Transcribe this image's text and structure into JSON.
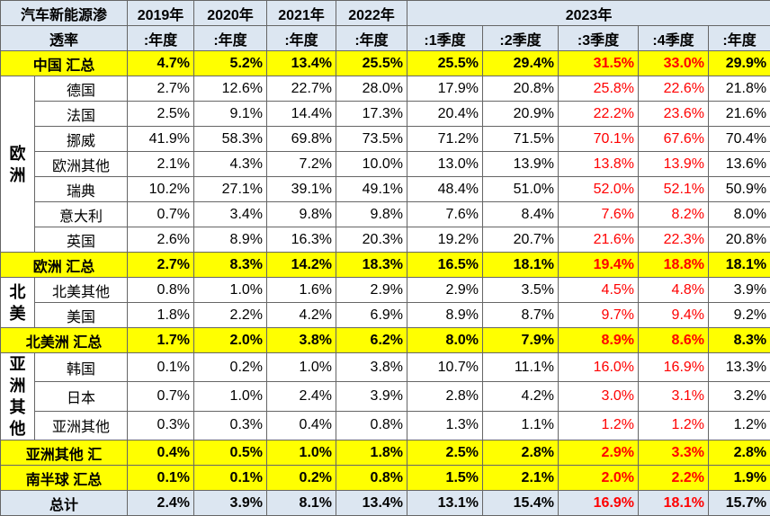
{
  "table": {
    "header": {
      "row1": [
        "汽车新能源渗",
        "2019年",
        "2020年",
        "2021年",
        "2022年",
        "2023年"
      ],
      "row2": [
        "透率",
        ":年度",
        ":年度",
        ":年度",
        ":年度",
        ":1季度",
        ":2季度",
        ":3季度",
        ":4季度",
        ":年度"
      ]
    },
    "highlight_columns": [
      6,
      7
    ],
    "highlight_color": "#ff0000",
    "sections": [
      {
        "summary": "中国 汇总",
        "values": [
          "4.7%",
          "5.2%",
          "13.4%",
          "25.5%",
          "25.5%",
          "29.4%",
          "31.5%",
          "33.0%",
          "29.9%"
        ]
      },
      {
        "group": "欧洲",
        "rows": [
          {
            "label": "德国",
            "values": [
              "2.7%",
              "12.6%",
              "22.7%",
              "28.0%",
              "17.9%",
              "20.8%",
              "25.8%",
              "22.6%",
              "21.8%"
            ]
          },
          {
            "label": "法国",
            "values": [
              "2.5%",
              "9.1%",
              "14.4%",
              "17.3%",
              "20.4%",
              "20.9%",
              "22.2%",
              "23.6%",
              "21.6%"
            ]
          },
          {
            "label": "挪威",
            "values": [
              "41.9%",
              "58.3%",
              "69.8%",
              "73.5%",
              "71.2%",
              "71.5%",
              "70.1%",
              "67.6%",
              "70.4%"
            ]
          },
          {
            "label": "欧洲其他",
            "values": [
              "2.1%",
              "4.3%",
              "7.2%",
              "10.0%",
              "13.0%",
              "13.9%",
              "13.8%",
              "13.9%",
              "13.6%"
            ]
          },
          {
            "label": "瑞典",
            "values": [
              "10.2%",
              "27.1%",
              "39.1%",
              "49.1%",
              "48.4%",
              "51.0%",
              "52.0%",
              "52.1%",
              "50.9%"
            ]
          },
          {
            "label": "意大利",
            "values": [
              "0.7%",
              "3.4%",
              "9.8%",
              "9.8%",
              "7.6%",
              "8.4%",
              "7.6%",
              "8.2%",
              "8.0%"
            ]
          },
          {
            "label": "英国",
            "values": [
              "2.6%",
              "8.9%",
              "16.3%",
              "20.3%",
              "19.2%",
              "20.7%",
              "21.6%",
              "22.3%",
              "20.8%"
            ]
          }
        ]
      },
      {
        "summary": "欧洲 汇总",
        "values": [
          "2.7%",
          "8.3%",
          "14.2%",
          "18.3%",
          "16.5%",
          "18.1%",
          "19.4%",
          "18.8%",
          "18.1%"
        ]
      },
      {
        "group": "北美",
        "rows": [
          {
            "label": "北美其他",
            "values": [
              "0.8%",
              "1.0%",
              "1.6%",
              "2.9%",
              "2.9%",
              "3.5%",
              "4.5%",
              "4.8%",
              "3.9%"
            ]
          },
          {
            "label": "美国",
            "values": [
              "1.8%",
              "2.2%",
              "4.2%",
              "6.9%",
              "8.9%",
              "8.7%",
              "9.7%",
              "9.4%",
              "9.2%"
            ]
          }
        ]
      },
      {
        "summary": "北美洲 汇总",
        "values": [
          "1.7%",
          "2.0%",
          "3.8%",
          "6.2%",
          "8.0%",
          "7.9%",
          "8.9%",
          "8.6%",
          "8.3%"
        ]
      },
      {
        "group": "亚洲其他",
        "rows": [
          {
            "label": "韩国",
            "values": [
              "0.1%",
              "0.2%",
              "1.0%",
              "3.8%",
              "10.7%",
              "11.1%",
              "16.0%",
              "16.9%",
              "13.3%"
            ]
          },
          {
            "label": "日本",
            "values": [
              "0.7%",
              "1.0%",
              "2.4%",
              "3.9%",
              "2.8%",
              "4.2%",
              "3.0%",
              "3.1%",
              "3.2%"
            ]
          },
          {
            "label": "亚洲其他",
            "values": [
              "0.3%",
              "0.3%",
              "0.4%",
              "0.8%",
              "1.3%",
              "1.1%",
              "1.2%",
              "1.2%",
              "1.2%"
            ]
          }
        ]
      },
      {
        "summary": "亚洲其他 汇",
        "values": [
          "0.4%",
          "0.5%",
          "1.0%",
          "1.8%",
          "2.5%",
          "2.8%",
          "2.9%",
          "3.3%",
          "2.8%"
        ]
      },
      {
        "summary": "南半球 汇总",
        "values": [
          "0.1%",
          "0.1%",
          "0.2%",
          "0.8%",
          "1.5%",
          "2.1%",
          "2.0%",
          "2.2%",
          "1.9%"
        ]
      }
    ],
    "total": {
      "label": "总计",
      "values": [
        "2.4%",
        "3.9%",
        "8.1%",
        "13.4%",
        "13.1%",
        "15.4%",
        "16.9%",
        "18.1%",
        "15.7%"
      ]
    }
  }
}
